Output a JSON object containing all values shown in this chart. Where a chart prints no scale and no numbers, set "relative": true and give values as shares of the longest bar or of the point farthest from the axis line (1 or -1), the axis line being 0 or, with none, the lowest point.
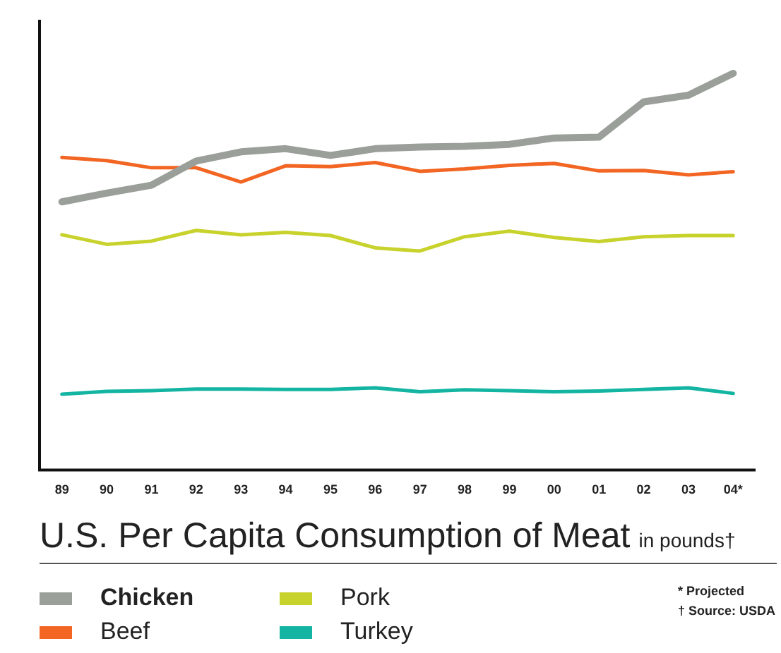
{
  "chart_data": {
    "type": "line",
    "title": "U.S. Per Capita Consumption of Meat",
    "subtitle": "in pounds†",
    "relative": true,
    "legend": "bottom",
    "grid": false,
    "marker": "none",
    "line_style": "solid",
    "categories": [
      "89",
      "90",
      "91",
      "92",
      "93",
      "94",
      "95",
      "96",
      "97",
      "98",
      "99",
      "00",
      "01",
      "02",
      "03",
      "04*"
    ],
    "annotations": [
      "* Projected",
      "† Source: USDA"
    ],
    "series": [
      {
        "name": "Chicken",
        "color": "#9a9f9a",
        "values": [
          0.676,
          0.698,
          0.718,
          0.779,
          0.802,
          0.81,
          0.793,
          0.81,
          0.814,
          0.816,
          0.821,
          0.837,
          0.839,
          0.928,
          0.945,
          1
        ]
      },
      {
        "name": "Beef",
        "color": "#f26522",
        "values": [
          0.788,
          0.78,
          0.762,
          0.762,
          0.726,
          0.767,
          0.765,
          0.775,
          0.753,
          0.759,
          0.768,
          0.773,
          0.754,
          0.755,
          0.744,
          0.752
        ]
      },
      {
        "name": "Pork",
        "color": "#c8d22c",
        "values": [
          0.593,
          0.569,
          0.577,
          0.604,
          0.593,
          0.599,
          0.591,
          0.56,
          0.552,
          0.588,
          0.602,
          0.586,
          0.576,
          0.588,
          0.591,
          0.591
        ]
      },
      {
        "name": "Turkey",
        "color": "#13b5a2",
        "values": [
          0.191,
          0.198,
          0.2,
          0.204,
          0.204,
          0.203,
          0.203,
          0.207,
          0.197,
          0.202,
          0.2,
          0.197,
          0.199,
          0.203,
          0.207,
          0.193
        ]
      }
    ]
  }
}
